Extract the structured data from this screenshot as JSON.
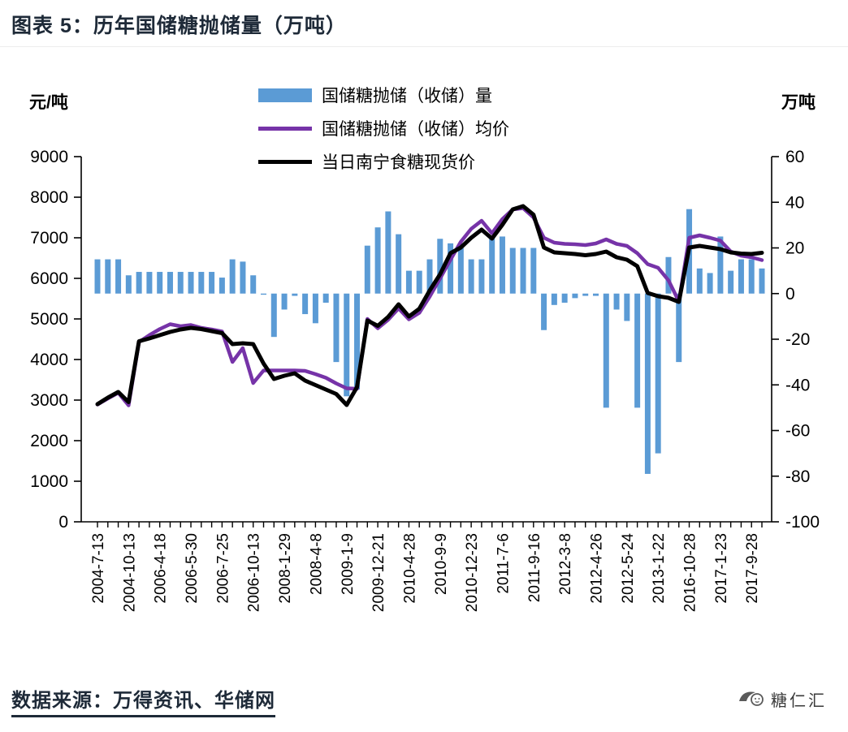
{
  "title": "图表 5：历年国储糖抛储量（万吨）",
  "source": "数据来源：万得资讯、华储网",
  "logo": {
    "text": "糖仁汇"
  },
  "colors": {
    "bar": "#5B9BD5",
    "avg_price_line": "#7633A8",
    "spot_price_line": "#000000",
    "axis": "#000000",
    "heading_text": "#1e2a38"
  },
  "chart_data": {
    "type": "bar",
    "title": "图表 5：历年国储糖抛储量（万吨）",
    "left_axis": {
      "title": "元/吨",
      "min": 0,
      "max": 9000,
      "tick_step": 1000
    },
    "right_axis": {
      "title": "万吨",
      "min": -100,
      "max": 60,
      "tick_step": 20
    },
    "grid": false,
    "legend_position": "top-center",
    "legend": [
      "国储糖抛储（收储）量",
      "国储糖抛储（收储）均价",
      "当日南宁食糖现货价"
    ],
    "n_points": 65,
    "x_label_every": 3,
    "x_tick_labels": [
      "2004-7-13",
      "2004-10-13",
      "2006-4-18",
      "2006-5-30",
      "2006-7-25",
      "2006-10-13",
      "2008-1-29",
      "2008-4-8",
      "2009-1-9",
      "2009-12-21",
      "2010-4-28",
      "2010-9-9",
      "2010-12-23",
      "2011-7-6",
      "2011-9-16",
      "2012-3-8",
      "2012-4-26",
      "2012-5-24",
      "2013-1-22",
      "2016-10-28",
      "2017-1-23",
      "2017-9-28"
    ],
    "series": [
      {
        "name": "国储糖抛储（收储）量",
        "type": "bar",
        "axis": "right",
        "unit": "万吨",
        "color": "#5B9BD5",
        "values": [
          15,
          15,
          15,
          8,
          9.5,
          9.5,
          9.5,
          9.5,
          9.5,
          9.5,
          9.5,
          9.5,
          7,
          15,
          14,
          8,
          -0.5,
          -19,
          -7,
          -1,
          -9,
          -13,
          -4,
          -30,
          -45,
          -42,
          21,
          29,
          36,
          26,
          10,
          10,
          15,
          24,
          22,
          20,
          15,
          15,
          25,
          25,
          20,
          20,
          20,
          -16,
          -5,
          -4,
          -2,
          -1,
          -1,
          -50,
          -7,
          -12,
          -50,
          -79,
          -70,
          16,
          -30,
          37,
          11,
          9,
          25,
          10,
          15,
          15,
          11
        ]
      },
      {
        "name": "国储糖抛储（收储）均价",
        "type": "line",
        "axis": "left",
        "unit": "元/吨",
        "color": "#7633A8",
        "values": [
          2890,
          3040,
          3180,
          2870,
          4430,
          4600,
          4750,
          4870,
          4820,
          4850,
          4780,
          4740,
          4690,
          3940,
          4280,
          3420,
          3730,
          3730,
          3730,
          3730,
          3720,
          3640,
          3550,
          3410,
          3290,
          3280,
          5000,
          4770,
          4980,
          5260,
          4990,
          5150,
          5550,
          6000,
          6460,
          6900,
          7220,
          7420,
          7110,
          7460,
          7700,
          7730,
          7500,
          7000,
          6880,
          6850,
          6840,
          6820,
          6860,
          6960,
          6850,
          6800,
          6620,
          6350,
          6260,
          5950,
          5430,
          7000,
          7060,
          7000,
          6930,
          6660,
          6560,
          6520,
          6450
        ]
      },
      {
        "name": "当日南宁食糖现货价",
        "type": "line",
        "axis": "left",
        "unit": "元/吨",
        "color": "#000000",
        "values": [
          2900,
          3060,
          3200,
          2950,
          4450,
          4520,
          4600,
          4680,
          4740,
          4780,
          4750,
          4700,
          4650,
          4380,
          4400,
          4380,
          3900,
          3520,
          3600,
          3660,
          3480,
          3370,
          3260,
          3150,
          2880,
          3320,
          4960,
          4830,
          5050,
          5360,
          5060,
          5250,
          5700,
          6100,
          6620,
          6760,
          7000,
          7200,
          6980,
          7320,
          7700,
          7780,
          7570,
          6760,
          6640,
          6620,
          6600,
          6570,
          6600,
          6660,
          6520,
          6460,
          6300,
          5640,
          5560,
          5520,
          5420,
          6760,
          6800,
          6760,
          6720,
          6640,
          6610,
          6600,
          6630
        ]
      }
    ]
  }
}
